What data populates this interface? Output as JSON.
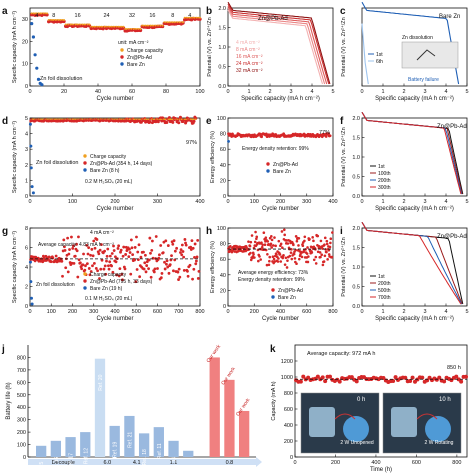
{
  "colors": {
    "red": "#d62728",
    "orange": "#f0a020",
    "darkred": "#9b1c1c",
    "blue": "#1f5fb5",
    "lightblue": "#9ec4ee",
    "pink": "#f2a0a0",
    "black": "#222222"
  },
  "chart_data": [
    {
      "panel": "a",
      "type": "scatter",
      "xlabel": "Cycle number",
      "ylabel": "Specific capacity (mA h cm⁻²)",
      "xlim": [
        0,
        100
      ],
      "ylim": [
        0,
        35
      ],
      "xticks": [
        0,
        20,
        40,
        60,
        80,
        100
      ],
      "yticks": [
        0,
        10,
        20,
        30
      ],
      "rate_labels": [
        "4",
        "8",
        "16",
        "24",
        "32",
        "16",
        "8",
        "4"
      ],
      "rate_positions": [
        4,
        14,
        28,
        45,
        60,
        72,
        84,
        94
      ],
      "rate_values": [
        32,
        29,
        27,
        26,
        25,
        26.5,
        28,
        30
      ],
      "legend_title": "unit: mA cm⁻²",
      "legend": [
        "Charge capacity",
        "Zn@Pb-Ad",
        "Bare Zn"
      ],
      "annotation": "Zn foil dissolution",
      "bare_zn_points": [
        [
          1,
          28
        ],
        [
          2,
          22
        ],
        [
          3,
          14
        ],
        [
          4,
          8
        ],
        [
          5,
          3
        ],
        [
          6,
          1.2
        ],
        [
          7,
          0.6
        ]
      ]
    },
    {
      "panel": "b",
      "type": "line",
      "xlabel": "Specific capacity (mA h cm⁻²)",
      "ylabel": "Potential (V) vs. Zn²⁺/Zn",
      "xlim": [
        0,
        5
      ],
      "ylim": [
        0.0,
        2.0
      ],
      "xticks": [
        0,
        1,
        2,
        3,
        4,
        5
      ],
      "yticks": [
        0.0,
        0.5,
        1.0,
        1.5,
        2.0
      ],
      "title": "Zn@Pb-Ad",
      "series": [
        {
          "name": "4 mA cm⁻²",
          "endcap": 4.85
        },
        {
          "name": "8 mA cm⁻²",
          "endcap": 4.8
        },
        {
          "name": "16 mA cm⁻²",
          "endcap": 4.7
        },
        {
          "name": "24 mA cm⁻²",
          "endcap": 4.6
        },
        {
          "name": "32 mA cm⁻²",
          "endcap": 4.5
        }
      ]
    },
    {
      "panel": "c",
      "type": "line",
      "xlabel": "Specific capacity (mA h cm⁻²)",
      "ylabel": "Potential (V) vs. Zn²⁺/Zn",
      "xlim": [
        0,
        5
      ],
      "ylim": [
        0.0,
        2.0
      ],
      "xticks": [
        0,
        1,
        2,
        3,
        4,
        5
      ],
      "title": "Bare Zn",
      "series": [
        {
          "name": "1st",
          "endcap": 4.6
        },
        {
          "name": "6th",
          "endcap": 0.3
        }
      ],
      "annotations": [
        "Zn dissolution",
        "Battery failure"
      ]
    },
    {
      "panel": "d",
      "type": "scatter",
      "xlabel": "Cycle number",
      "ylabel": "Specific capacity (mA h cm⁻²)",
      "xlim": [
        0,
        400
      ],
      "ylim": [
        0,
        5
      ],
      "xticks": [
        0,
        100,
        200,
        300,
        400
      ],
      "yticks": [
        0,
        1,
        2,
        3,
        4,
        5
      ],
      "legend": [
        "Charge capacity",
        "Zn@Pb-Ad (354 h, 14 days)",
        "Bare Zn (8 h)"
      ],
      "conditions": "0.2 M H₂SO₄ (20 mL)",
      "annotation": "Zn foil dissolution",
      "retention": "97%",
      "series": [
        {
          "name": "Zn@Pb-Ad",
          "level": 4.85
        }
      ]
    },
    {
      "panel": "e",
      "type": "scatter",
      "xlabel": "Cycle number",
      "ylabel": "Energy efficiency (%)",
      "xlim": [
        0,
        400
      ],
      "ylim": [
        0,
        100
      ],
      "xticks": [
        0,
        100,
        200,
        300,
        400
      ],
      "yticks": [
        0,
        20,
        40,
        60,
        80,
        100
      ],
      "legend": [
        "Zn@Pb-Ad",
        "Bare Zn"
      ],
      "annotation": "Energy density retention: 99%",
      "retention": "77%",
      "series": [
        {
          "name": "Zn@Pb-Ad",
          "level": 78
        }
      ]
    },
    {
      "panel": "f",
      "type": "line",
      "xlabel": "Specific capacity (mA h cm⁻²)",
      "ylabel": "Potential (V) vs. Zn²⁺/Zn",
      "xlim": [
        0,
        5
      ],
      "ylim": [
        0.0,
        2.0
      ],
      "xticks": [
        0,
        1,
        2,
        3,
        4,
        5
      ],
      "yticks": [
        0.0,
        0.5,
        1.0,
        1.5,
        2.0
      ],
      "title": "Zn@Pb-Ad",
      "series": [
        {
          "name": "1st"
        },
        {
          "name": "100th"
        },
        {
          "name": "200th"
        },
        {
          "name": "300th"
        }
      ]
    },
    {
      "panel": "g",
      "type": "scatter",
      "xlabel": "Cycle number",
      "ylabel": "Specific capacity (mA h cm⁻²)",
      "xlim": [
        0,
        800
      ],
      "ylim": [
        0,
        8
      ],
      "xticks": [
        0,
        100,
        200,
        300,
        400,
        500,
        600,
        700,
        800
      ],
      "yticks": [
        0,
        2,
        4,
        6,
        8
      ],
      "legend_title": "4 mA cm⁻²",
      "legend": [
        "Charge capacity",
        "Zn@Pb-Ad (795 h, 33 days)",
        "Bare Zn (19 h)"
      ],
      "conditions": "0.1 M H₂SO₄ (20 mL)",
      "average": "Average capacity: 4.83 mA h cm⁻²",
      "annotation": "Zn foil dissolution",
      "series": [
        {
          "name": "Zn@Pb-Ad",
          "level": 4.83
        }
      ]
    },
    {
      "panel": "h",
      "type": "scatter",
      "xlabel": "Cycle number",
      "ylabel": "Energy efficiency (%)",
      "xlim": [
        0,
        800
      ],
      "ylim": [
        0,
        100
      ],
      "xticks": [
        0,
        200,
        400,
        600,
        800
      ],
      "yticks": [
        0,
        20,
        40,
        60,
        80,
        100
      ],
      "legend": [
        "Zn@Pb-Ad",
        "Bare Zn"
      ],
      "annotations": [
        "Average energy efficiency: 73%",
        "Energy density retention: 99%"
      ],
      "series": [
        {
          "name": "Zn@Pb-Ad",
          "level": 73
        }
      ]
    },
    {
      "panel": "i",
      "type": "line",
      "xlabel": "Specific capacity (mA h cm⁻²)",
      "ylabel": "Potential (V) vs. Zn²⁺/Zn",
      "xlim": [
        0,
        5
      ],
      "ylim": [
        0.0,
        2.0
      ],
      "xticks": [
        0,
        1,
        2,
        3,
        4,
        5
      ],
      "yticks": [
        0.0,
        0.5,
        1.0,
        1.5,
        2.0
      ],
      "title": "Zn@Pb-Ad",
      "series": [
        {
          "name": "1st"
        },
        {
          "name": "200th"
        },
        {
          "name": "500th"
        },
        {
          "name": "700th"
        }
      ]
    },
    {
      "panel": "j",
      "type": "bar",
      "ylabel": "Battery life (h)",
      "ylim": [
        0,
        900
      ],
      "yticks": [
        0,
        100,
        200,
        300,
        400,
        500,
        600,
        700,
        800
      ],
      "x_groups": [
        "Decouple",
        "6.0",
        "4.1",
        "1.1",
        "0.8"
      ],
      "categories": [
        "Ref. 15",
        "Ref. 16",
        "Ref. 17",
        "Ref. 12",
        "Ref. 20",
        "Ref. 19",
        "Ref. 21",
        "Ref. 18",
        "Ref. 11",
        "Ref. 14",
        "Ref. 5",
        "Our work",
        "Our work",
        "Our work"
      ],
      "values": [
        90,
        130,
        160,
        200,
        790,
        250,
        330,
        190,
        240,
        130,
        50,
        800,
        620,
        370
      ],
      "group_of": [
        0,
        0,
        0,
        0,
        1,
        1,
        2,
        2,
        3,
        3,
        3,
        4,
        4,
        4
      ]
    },
    {
      "panel": "k",
      "type": "scatter",
      "xlabel": "Time (h)",
      "ylabel": "Capacity (mA h)",
      "xlim": [
        0,
        850
      ],
      "ylim": [
        0,
        1400
      ],
      "xticks": [
        0,
        200,
        400,
        600,
        800
      ],
      "yticks": [
        0,
        200,
        400,
        600,
        800,
        1000,
        1200
      ],
      "average": "Average capacity: 972 mA h",
      "end_label": "850 h",
      "series": [
        {
          "name": "Capacity",
          "level": 972
        }
      ],
      "inset_labels": [
        "0 h",
        "10 h"
      ],
      "inset_sublabels": [
        "2 W Unopened",
        "2 W Rotating"
      ]
    }
  ]
}
